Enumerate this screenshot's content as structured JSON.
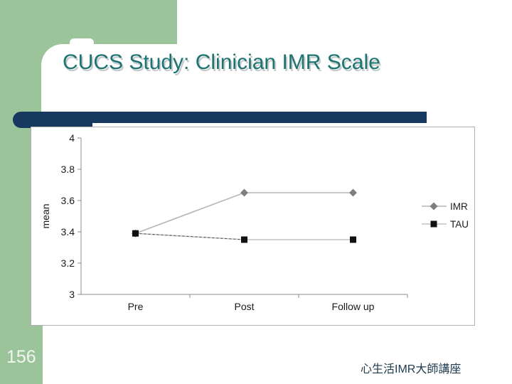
{
  "slide": {
    "title": "CUCS Study: Clinician IMR Scale",
    "page_number": "156",
    "footer": "心生活IMR大師講座"
  },
  "colors": {
    "accent_green": "#9cc49b",
    "accent_navy": "#17395f",
    "title_teal": "#1e7472",
    "footer_text": "#1d3a4d",
    "axis_gray": "#8c8c8c",
    "text_black": "#1a1a1a"
  },
  "chart_data": {
    "type": "line",
    "title": "",
    "xlabel": "",
    "ylabel": "mean",
    "categories": [
      "Pre",
      "Post",
      "Follow up"
    ],
    "series": [
      {
        "name": "IMR",
        "values": [
          3.39,
          3.65,
          3.65
        ],
        "marker": "diamond",
        "marker_color": "#7f7f7f",
        "line_color": "#b5b5b5",
        "dash_overlay_segment": null
      },
      {
        "name": "TAU",
        "values": [
          3.39,
          3.35,
          3.35
        ],
        "marker": "square",
        "marker_color": "#111111",
        "line_color": "#c3c3c3",
        "dash_overlay_segment": 0
      }
    ],
    "ylim": [
      3,
      4
    ],
    "y_tick_values": [
      4,
      3.8,
      3.6,
      3.4,
      3.2,
      3
    ],
    "y_tick_labels": [
      "4",
      "3.8",
      "3.6",
      "3.4",
      "3.2",
      "3"
    ],
    "grid": false,
    "legend_position": "right"
  }
}
